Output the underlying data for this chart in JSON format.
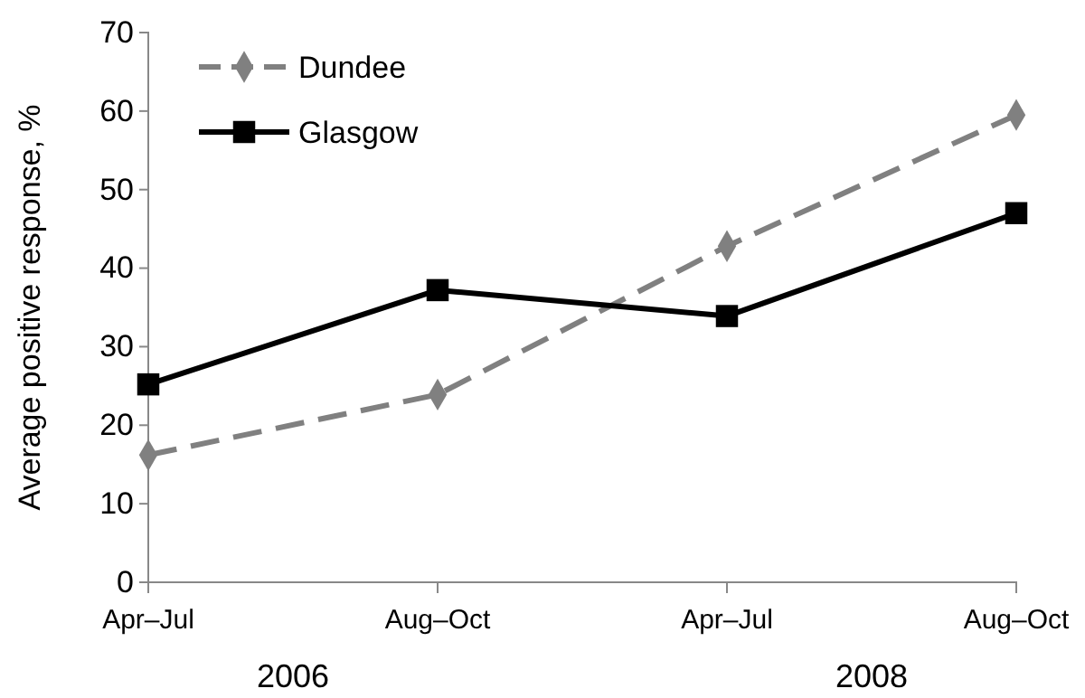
{
  "chart_data": {
    "type": "line",
    "ylabel": "Average positive response, %",
    "categories": [
      "Apr–Jul",
      "Aug–Oct",
      "Apr–Jul",
      "Aug–Oct"
    ],
    "series": [
      {
        "name": "Dundee",
        "color": "#808080",
        "values": [
          16.2,
          23.9,
          42.8,
          59.5
        ],
        "marker": "diamond",
        "line_style": "dashed"
      },
      {
        "name": "Glasgow",
        "color": "#000000",
        "values": [
          25.2,
          37.2,
          33.9,
          47.0
        ],
        "marker": "square",
        "line_style": "solid"
      }
    ],
    "ylim": [
      0,
      70
    ],
    "yticks": [
      0,
      10,
      20,
      30,
      40,
      50,
      60,
      70
    ],
    "grid": false,
    "legend": "top left",
    "annotations": [
      "2006",
      "2008"
    ]
  }
}
